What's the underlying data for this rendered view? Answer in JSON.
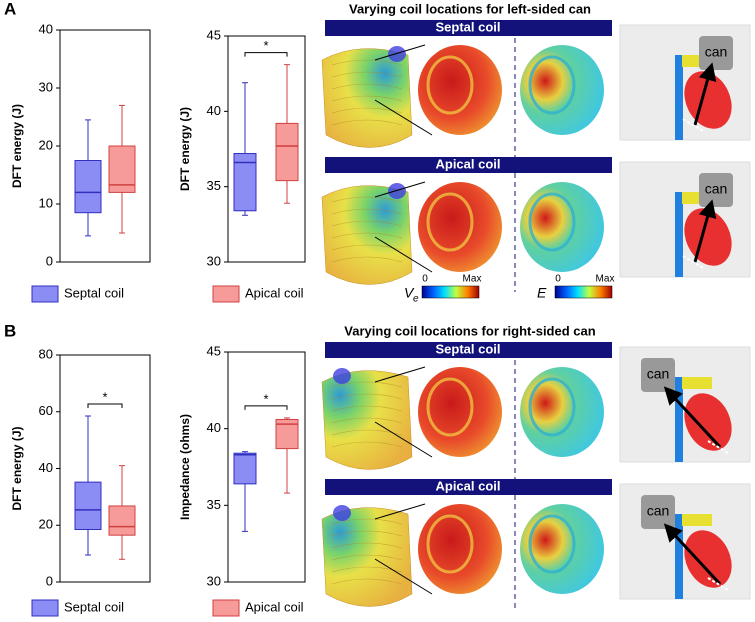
{
  "panels": [
    {
      "label": "A",
      "title": "Varying coil locations for left-sided can",
      "legend": [
        {
          "name": "Septal coil",
          "color": "#8c8cf5",
          "edge": "#3030c0"
        },
        {
          "name": "Apical coil",
          "color": "#f79a9a",
          "edge": "#d04040"
        }
      ],
      "charts": [
        {
          "type": "box",
          "ylabel": "DFT energy (J)",
          "ylim": [
            0,
            40
          ],
          "yticks": [
            0,
            10,
            20,
            30,
            40
          ],
          "boxes": [
            {
              "min": 4.5,
              "q1": 8.5,
              "median": 12,
              "q3": 17.5,
              "max": 24.5
            },
            {
              "min": 5,
              "q1": 12,
              "median": 13.3,
              "q3": 20,
              "max": 27
            }
          ]
        },
        {
          "type": "box",
          "ylabel": "DFT energy (J)",
          "ylim": [
            30,
            45
          ],
          "yticks": [
            30,
            35,
            40,
            45
          ],
          "significance": "*",
          "boxes": [
            {
              "min": 33.1,
              "q1": 33.4,
              "median": 36.6,
              "q3": 37.2,
              "max": 41.9
            },
            {
              "min": 33.9,
              "q1": 35.4,
              "median": 37.7,
              "q3": 39.2,
              "max": 43.1
            }
          ]
        }
      ],
      "rows": [
        {
          "banner": "Septal coil",
          "can": "can"
        },
        {
          "banner": "Apical coil",
          "can": "can"
        }
      ]
    },
    {
      "label": "B",
      "title": "Varying coil locations for right-sided can",
      "legend": [
        {
          "name": "Septal coil",
          "color": "#8c8cf5",
          "edge": "#3030c0"
        },
        {
          "name": "Apical coil",
          "color": "#f79a9a",
          "edge": "#d04040"
        }
      ],
      "charts": [
        {
          "type": "box",
          "ylabel": "DFT energy (J)",
          "ylim": [
            0,
            80
          ],
          "yticks": [
            0,
            20,
            40,
            60,
            80
          ],
          "significance": "*",
          "boxes": [
            {
              "min": 9.5,
              "q1": 18.5,
              "median": 25.4,
              "q3": 35.2,
              "max": 58.5
            },
            {
              "min": 8,
              "q1": 16.5,
              "median": 19.5,
              "q3": 26.8,
              "max": 41
            }
          ]
        },
        {
          "type": "box",
          "ylabel": "Impedance (ohms)",
          "ylim": [
            30,
            45
          ],
          "yticks": [
            30,
            35,
            40,
            45
          ],
          "significance": "*",
          "boxes": [
            {
              "min": 33.3,
              "q1": 36.4,
              "median": 38.3,
              "q3": 38.4,
              "max": 38.5
            },
            {
              "min": 35.8,
              "q1": 38.7,
              "median": 40.3,
              "q3": 40.6,
              "max": 40.7
            }
          ]
        }
      ],
      "rows": [
        {
          "banner": "Septal coil",
          "can": "can"
        },
        {
          "banner": "Apical coil",
          "can": "can"
        }
      ]
    }
  ],
  "colorbars": [
    {
      "symbol": "V",
      "subscript": "e",
      "min_label": "0",
      "max_label": "Max"
    },
    {
      "symbol": "E",
      "min_label": "0",
      "max_label": "Max"
    }
  ]
}
